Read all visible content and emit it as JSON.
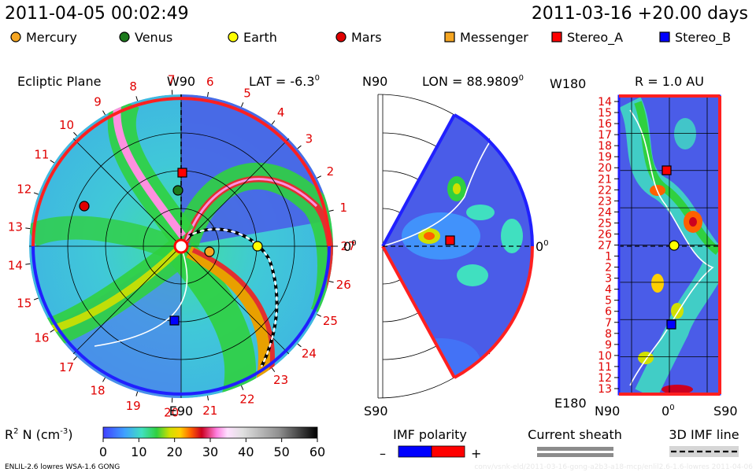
{
  "header": {
    "timestamp": "2011-04-05 00:02:49",
    "run_info": "2011-03-16 +20.00 days"
  },
  "legend_bodies": [
    {
      "label": "Mercury",
      "shape": "circle",
      "color": "#f5a623"
    },
    {
      "label": "Venus",
      "shape": "circle",
      "color": "#1c7a1c"
    },
    {
      "label": "Earth",
      "shape": "circle",
      "color": "#ffff00"
    },
    {
      "label": "Mars",
      "shape": "circle",
      "color": "#e00000"
    },
    {
      "label": "Messenger",
      "shape": "square",
      "color": "#f5a623"
    },
    {
      "label": "Stereo_A",
      "shape": "square",
      "color": "#ff0000"
    },
    {
      "label": "Stereo_B",
      "shape": "square",
      "color": "#0000ff"
    }
  ],
  "panels": {
    "ecliptic": {
      "title": "Ecliptic Plane",
      "top_label": "W90",
      "bottom_label": "E90",
      "right_label": "0",
      "right_label_sup": "0",
      "lat_label": "LAT = -6.3",
      "lat_sup": "0",
      "carrington_ticks": [
        "27",
        "1",
        "2",
        "3",
        "4",
        "5",
        "6",
        "7",
        "8",
        "9",
        "10",
        "11",
        "12",
        "13",
        "14",
        "15",
        "16",
        "17",
        "18",
        "19",
        "20",
        "21",
        "22",
        "23",
        "24",
        "25",
        "26"
      ]
    },
    "meridional": {
      "top_label": "N90",
      "bottom_label": "S90",
      "right_label": "0",
      "right_label_sup": "0",
      "lon_label": "LON = 88.9809",
      "lon_sup": "0"
    },
    "rsphere": {
      "corner_top": "W180",
      "corner_bottom": "E180",
      "r_label": "R = 1.0 AU",
      "x_left": "N90",
      "x_mid": "0",
      "x_mid_sup": "0",
      "x_right": "S90",
      "y_ticks": [
        "14",
        "15",
        "16",
        "17",
        "18",
        "19",
        "20",
        "21",
        "22",
        "23",
        "24",
        "25",
        "26",
        "27",
        "1",
        "2",
        "3",
        "4",
        "5",
        "6",
        "7",
        "8",
        "9",
        "10",
        "11",
        "12",
        "13"
      ]
    }
  },
  "colorbar": {
    "label": "R",
    "label_sup": "2",
    "label_rest": " N (cm",
    "label_exp": "-3",
    "label_close": ")",
    "ticks": [
      "0",
      "10",
      "20",
      "30",
      "40",
      "50",
      "60"
    ],
    "min": 0,
    "max": 60
  },
  "imf_polarity": {
    "title": "IMF polarity",
    "minus": "–",
    "plus": "+",
    "neg_color": "#0000ff",
    "pos_color": "#ff0000"
  },
  "current_sheath": {
    "title": "Current sheath"
  },
  "imf_3d": {
    "title": "3D IMF line"
  },
  "footer": {
    "model": "ENLIL-2.6 lowres WSA-1.6 GONG",
    "watermark": "conv/vsnk-eld/2011-03-16-gong-a2b3-a18-mcp/enlil2.6-1.6-lowres   2011-04-06"
  },
  "chart_data": {
    "type": "heatmap",
    "quantity": "R^2 N",
    "units": "cm^-3",
    "color_range": [
      0,
      60
    ],
    "bodies": [
      {
        "name": "Mercury",
        "panel": "ecliptic"
      },
      {
        "name": "Venus",
        "panel": "ecliptic"
      },
      {
        "name": "Earth",
        "panel": "ecliptic"
      },
      {
        "name": "Mars",
        "panel": "ecliptic"
      },
      {
        "name": "Messenger",
        "panel": "ecliptic"
      },
      {
        "name": "Stereo_A",
        "panel": "ecliptic"
      },
      {
        "name": "Stereo_B",
        "panel": "ecliptic"
      }
    ]
  }
}
